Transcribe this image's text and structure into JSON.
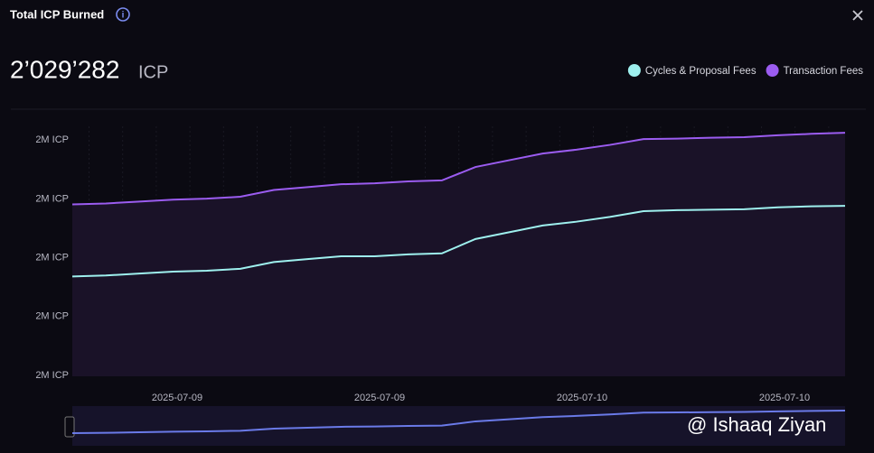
{
  "header": {
    "title": "Total ICP Burned",
    "total": "2’029’282",
    "unit": "ICP"
  },
  "watermark": "@ Ishaaq Ziyan",
  "chart_data": {
    "type": "area",
    "xtick_labels": [
      "2025-07-09",
      "2025-07-09",
      "2025-07-10",
      "2025-07-10"
    ],
    "ylim": [
      2021000,
      2029500
    ],
    "yticks": [
      {
        "value": 2021000,
        "label": "2M ICP"
      },
      {
        "value": 2023000,
        "label": "2M ICP"
      },
      {
        "value": 2025000,
        "label": "2M ICP"
      },
      {
        "value": 2027000,
        "label": "2M ICP"
      },
      {
        "value": 2029000,
        "label": "2M ICP"
      }
    ],
    "grid": true,
    "legend": "top-right",
    "series": [
      {
        "name": "Cycles & Proposal Fees",
        "color": "#9ef0ee",
        "fill": "#131d24",
        "values": [
          2024396,
          2024429,
          2024494,
          2024559,
          2024592,
          2024657,
          2024886,
          2024984,
          2025082,
          2025082,
          2025147,
          2025180,
          2025669,
          2025898,
          2026127,
          2026257,
          2026420,
          2026616,
          2026649,
          2026665,
          2026682,
          2026747,
          2026780,
          2026796
        ]
      },
      {
        "name": "Transaction Fees",
        "color": "#9b5cf0",
        "fill": "#1a1228",
        "values": [
          2026845,
          2026878,
          2026943,
          2027008,
          2027041,
          2027106,
          2027335,
          2027433,
          2027531,
          2027563,
          2027629,
          2027661,
          2028118,
          2028347,
          2028576,
          2028706,
          2028869,
          2029065,
          2029082,
          2029114,
          2029131,
          2029196,
          2029245,
          2029282
        ]
      }
    ]
  }
}
